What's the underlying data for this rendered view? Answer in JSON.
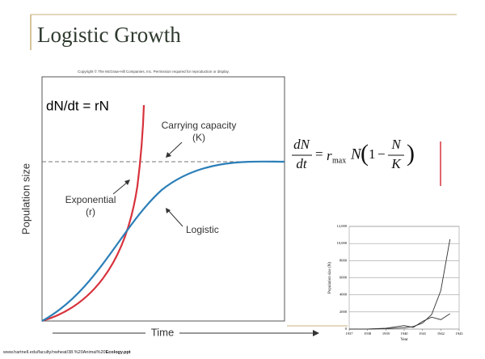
{
  "slide": {
    "title": "Logistic Growth",
    "copyright": "Copyright © The McGraw-Hill Companies, Inc. Permission required for reproduction or display.",
    "source": "www.hartnell.edu/faculty/nwheat/38.%20Animal%20",
    "source_bold": "Ecology.ppt"
  },
  "figure": {
    "equation": "dN/dt = rN",
    "carrying_capacity": "Carrying capacity",
    "k": "(K)",
    "exponential": "Exponential",
    "r": "(r)",
    "logistic": "Logistic",
    "y_label": "Population size",
    "x_label": "Time"
  },
  "formula": {
    "numerator": "dN",
    "denominator": "dt",
    "equals": "=",
    "r": "r",
    "sub": "max",
    "n": "N",
    "one": "1",
    "minus": "−",
    "frac_num": "N",
    "frac_den": "K"
  },
  "chart_data": {
    "type": "line",
    "x": [
      1937,
      1938,
      1939,
      1940,
      1940.5,
      1941,
      1941.5,
      1942,
      1942.5,
      1943
    ],
    "series": [
      {
        "color": "#333333",
        "values": [
          0,
          0,
          50,
          150,
          300,
          700,
          1700,
          4500,
          10500,
          null
        ]
      },
      {
        "color": "#333333",
        "values": [
          0,
          0,
          100,
          400,
          200,
          900,
          1400,
          1100,
          1800,
          null
        ]
      }
    ],
    "xlim": [
      1937,
      1943
    ],
    "xticks": [
      1937,
      1938,
      1939,
      1940,
      1941,
      1942,
      1943
    ],
    "ylim": [
      0,
      12000
    ],
    "yticks": [
      0,
      2000,
      4000,
      6000,
      8000,
      {
        "value": 10000,
        "label": "10,000"
      },
      {
        "value": 12000,
        "label": "12,000"
      }
    ],
    "ylabel": "Population size (N)",
    "xlabel": "Year",
    "grid": true
  }
}
